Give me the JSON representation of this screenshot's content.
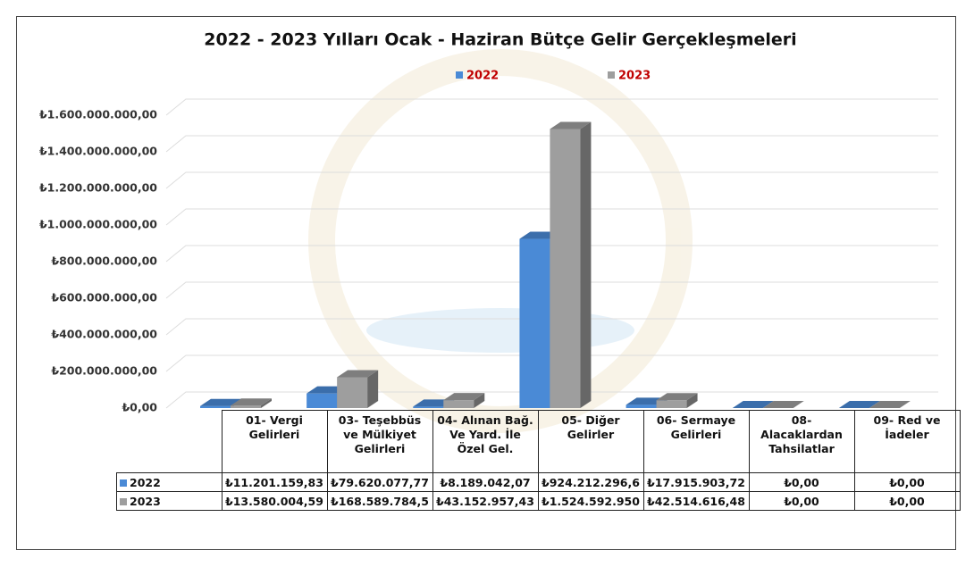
{
  "chart_data": {
    "type": "bar3d",
    "title": "2022 - 2023 Yılları Ocak - Haziran Bütçe Gelir Gerçekleşmeleri",
    "categories": [
      "01- Vergi Gelirleri",
      "03- Teşebbüs ve Mülkiyet Gelirleri",
      "04- Alınan Bağ. Ve Yard. İle Özel Gel.",
      "05- Diğer Gelirler",
      "06- Sermaye Gelirleri",
      "08- Alacaklardan Tahsilatlar",
      "09- Red ve İadeler"
    ],
    "series": [
      {
        "name": "2022",
        "color": "#4a8ad6",
        "values": [
          11201159.83,
          79620077.77,
          8189042.07,
          924212296.6,
          17915903.72,
          0,
          0
        ],
        "value_labels": [
          "₺11.201.159,83",
          "₺79.620.077,77",
          "₺8.189.042,07",
          "₺924.212.296,6",
          "₺17.915.903,72",
          "₺0,00",
          "₺0,00"
        ]
      },
      {
        "name": "2023",
        "color": "#9e9e9e",
        "values": [
          13580004.59,
          168589784.5,
          43152957.43,
          1524592950,
          42514616.48,
          0,
          0
        ],
        "value_labels": [
          "₺13.580.004,59",
          "₺168.589.784,5",
          "₺43.152.957,43",
          "₺1.524.592.950",
          "₺42.514.616,48",
          "₺0,00",
          "₺0,00"
        ]
      }
    ],
    "ylim": [
      0,
      1600000000
    ],
    "yticks": [
      {
        "value": 0,
        "label": "₺0,00"
      },
      {
        "value": 200000000,
        "label": "₺200.000.000,00"
      },
      {
        "value": 400000000,
        "label": "₺400.000.000,00"
      },
      {
        "value": 600000000,
        "label": "₺600.000.000,00"
      },
      {
        "value": 800000000,
        "label": "₺800.000.000,00"
      },
      {
        "value": 1000000000,
        "label": "₺1.000.000.000,00"
      },
      {
        "value": 1200000000,
        "label": "₺1.200.000.000,00"
      },
      {
        "value": 1400000000,
        "label": "₺1.400.000.000,00"
      },
      {
        "value": 1600000000,
        "label": "₺1.600.000.000,00"
      }
    ],
    "grid": true,
    "legend": "top",
    "legend_text_color": "#c00000"
  }
}
